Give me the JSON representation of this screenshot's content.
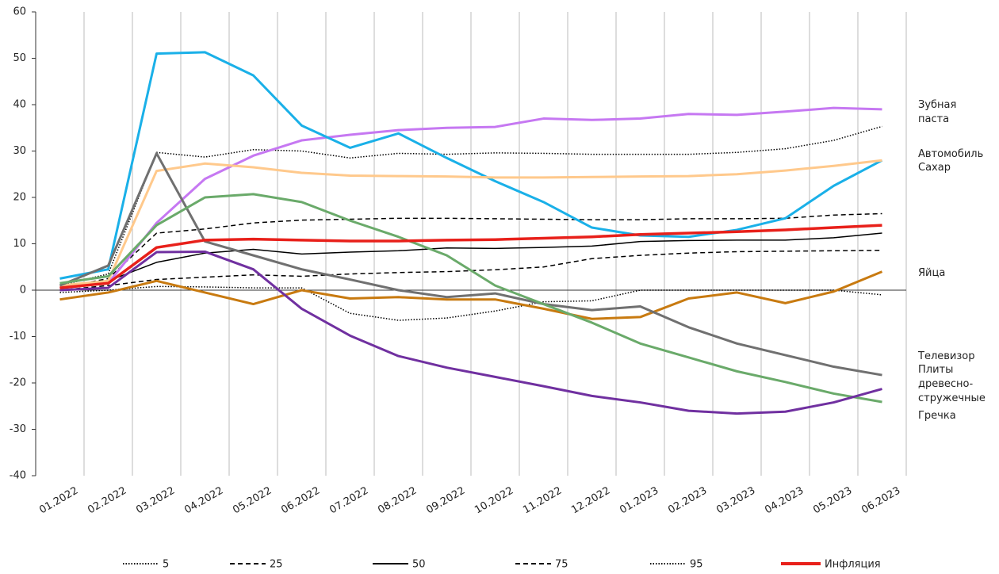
{
  "chart_data": {
    "type": "line",
    "categories": [
      "01.2022",
      "02.2022",
      "03.2022",
      "04.2022",
      "05.2022",
      "06.2022",
      "07.2022",
      "08.2022",
      "09.2022",
      "10.2022",
      "11.2022",
      "12.2022",
      "01.2023",
      "02.2023",
      "03.2023",
      "04.2023",
      "05.2023",
      "06.2023"
    ],
    "ylim": [
      -40,
      60
    ],
    "yticks": [
      -40,
      -30,
      -20,
      -10,
      0,
      10,
      20,
      30,
      40,
      50,
      60
    ],
    "grid": "vertical",
    "legend": "bottom",
    "series": [
      {
        "name": "5",
        "color": "#000000",
        "dash": "dotted",
        "label": "legend",
        "values": [
          -0.5,
          0,
          0.8,
          0.7,
          0.5,
          0.5,
          -5,
          -6.5,
          -6,
          -4.5,
          -2.5,
          -2.3,
          0,
          0,
          0,
          0,
          0,
          -1
        ]
      },
      {
        "name": "25",
        "color": "#000000",
        "dash": "dashed",
        "label": "legend",
        "values": [
          0,
          1,
          2.3,
          2.8,
          3.3,
          3,
          3.5,
          3.8,
          4,
          4.4,
          5,
          6.8,
          7.5,
          8,
          8.3,
          8.4,
          8.5,
          8.6
        ]
      },
      {
        "name": "50",
        "color": "#000000",
        "dash": "solid",
        "label": "legend",
        "values": [
          0.5,
          2,
          6,
          8,
          8.8,
          7.8,
          8.2,
          8.5,
          9.1,
          9,
          9.2,
          9.5,
          10.5,
          10.7,
          10.8,
          10.8,
          11.3,
          12.3
        ]
      },
      {
        "name": "75",
        "color": "#000000",
        "dash": "dashed",
        "label": "legend",
        "values": [
          0.5,
          2.5,
          12.3,
          13.2,
          14.5,
          15.1,
          15.3,
          15.5,
          15.5,
          15.4,
          15.3,
          15.2,
          15.2,
          15.4,
          15.4,
          15.5,
          16.2,
          16.5
        ]
      },
      {
        "name": "95",
        "color": "#000000",
        "dash": "dotted",
        "label": "legend",
        "values": [
          1,
          3.5,
          29.7,
          28.7,
          30.3,
          30,
          28.5,
          29.5,
          29.3,
          29.6,
          29.5,
          29.3,
          29.3,
          29.3,
          29.7,
          30.5,
          32.3,
          35.3
        ]
      },
      {
        "name": "Зубная паста",
        "color": "#c678f2",
        "dash": "solid",
        "label": "end",
        "values": [
          0.5,
          1.5,
          14.5,
          24,
          29,
          32.3,
          33.5,
          34.5,
          35,
          35.2,
          37,
          36.7,
          37,
          38,
          37.8,
          38.5,
          39.3,
          39
        ]
      },
      {
        "name": "Автомобиль",
        "color": "#1ab0e8",
        "dash": "solid",
        "label": "end",
        "values": [
          2.5,
          4.5,
          51,
          51.3,
          46.3,
          35.5,
          30.7,
          33.8,
          28.5,
          23.5,
          19,
          13.5,
          11.8,
          11.5,
          13,
          15.5,
          22.5,
          28
        ]
      },
      {
        "name": "Сахар",
        "color": "#ffc98c",
        "dash": "solid",
        "label": "end",
        "values": [
          1,
          2,
          25.7,
          27.3,
          26.5,
          25.3,
          24.7,
          24.6,
          24.5,
          24.3,
          24.3,
          24.4,
          24.5,
          24.6,
          25,
          25.8,
          26.8,
          28
        ]
      },
      {
        "name": "Яйца",
        "color": "#c87a10",
        "dash": "solid",
        "label": "end",
        "values": [
          -2,
          -0.5,
          2,
          -0.5,
          -3,
          0,
          -1.8,
          -1.5,
          -2,
          -2,
          -4,
          -6.2,
          -5.8,
          -1.8,
          -0.5,
          -2.8,
          -0.3,
          4
        ]
      },
      {
        "name": "Телевизор",
        "color": "#707070",
        "dash": "solid",
        "label": "end",
        "values": [
          1,
          5.3,
          29.5,
          10.5,
          7.5,
          4.5,
          2.3,
          0,
          -1.5,
          -0.7,
          -3,
          -4.3,
          -3.5,
          -8,
          -11.5,
          -14,
          -16.5,
          -18.3
        ]
      },
      {
        "name": "Плиты древесно-стружечные",
        "color": "#6aaa6a",
        "dash": "solid",
        "label": "end",
        "values": [
          1.5,
          3,
          14,
          20,
          20.7,
          19,
          15,
          11.5,
          7.5,
          1,
          -3,
          -7,
          -11.5,
          -14.5,
          -17.5,
          -19.8,
          -22.3,
          -24.1
        ]
      },
      {
        "name": "Гречка",
        "color": "#7030a0",
        "dash": "solid",
        "label": "end",
        "values": [
          0,
          0.5,
          8.2,
          8.3,
          4.5,
          -4,
          -9.8,
          -14.2,
          -16.7,
          -18.7,
          -20.7,
          -22.8,
          -24.2,
          -26,
          -26.6,
          -26.2,
          -24.2,
          -21.3
        ]
      },
      {
        "name": "Инфляция",
        "color": "#e8201a",
        "dash": "solid",
        "label": "legend",
        "values": [
          0.5,
          1.5,
          9.2,
          10.8,
          11,
          10.8,
          10.6,
          10.6,
          10.8,
          10.9,
          11.2,
          11.5,
          12,
          12.3,
          12.6,
          13,
          13.5,
          14
        ]
      }
    ]
  }
}
